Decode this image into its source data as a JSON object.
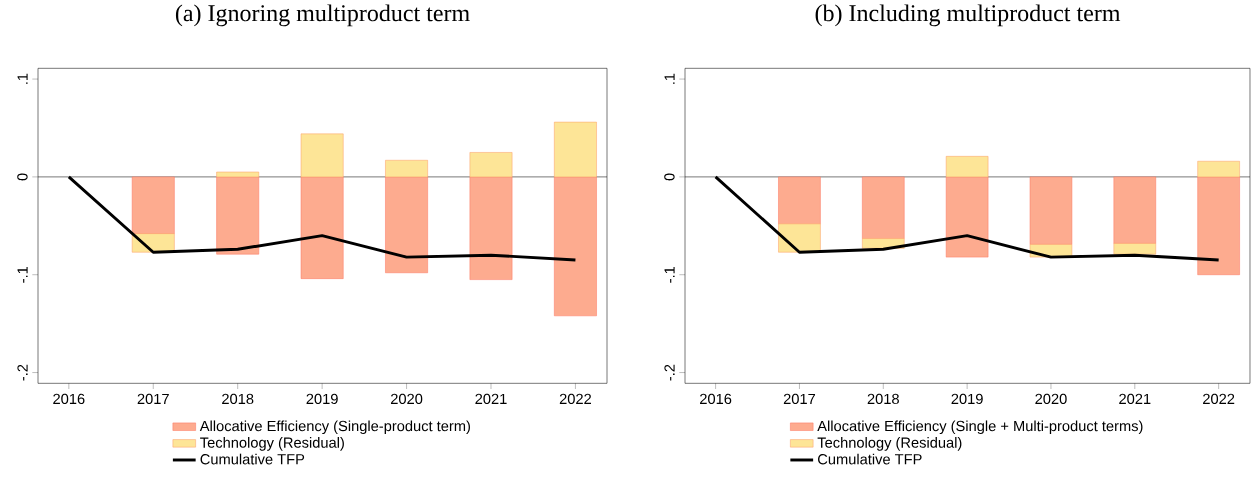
{
  "chart_data": [
    {
      "type": "bar",
      "title": "(a) Ignoring multiproduct term",
      "categories": [
        "2016",
        "2017",
        "2018",
        "2019",
        "2020",
        "2021",
        "2022"
      ],
      "stacked": true,
      "series": [
        {
          "name": "Allocative Efficiency (Single-product term)",
          "color": "#fdab8f",
          "values": [
            null,
            -0.058,
            -0.079,
            -0.104,
            -0.098,
            -0.105,
            -0.142
          ]
        },
        {
          "name": "Technology (Residual)",
          "color": "#fde597",
          "values": [
            null,
            -0.019,
            0.005,
            0.044,
            0.017,
            0.025,
            0.056
          ]
        },
        {
          "name": "Cumulative TFP",
          "type": "line",
          "color": "#000000",
          "values": [
            0,
            -0.077,
            -0.074,
            -0.06,
            -0.082,
            -0.08,
            -0.085
          ]
        }
      ],
      "ylim": [
        -0.211,
        0.111
      ],
      "yticks": [
        {
          "value": -0.2,
          "label": "-.2"
        },
        {
          "value": -0.1,
          "label": "-.1"
        },
        0,
        {
          "value": 0.1,
          "label": ".1"
        }
      ],
      "ref_lines": [
        {
          "axis": "y",
          "value": 0
        }
      ],
      "legend": "bottom"
    },
    {
      "type": "bar",
      "title": "(b) Including multiproduct term",
      "categories": [
        "2016",
        "2017",
        "2018",
        "2019",
        "2020",
        "2021",
        "2022"
      ],
      "stacked": true,
      "series": [
        {
          "name": "Allocative Efficiency (Single + Multi-product terms)",
          "color": "#fdab8f",
          "values": [
            null,
            -0.048,
            -0.063,
            -0.082,
            -0.069,
            -0.068,
            -0.1
          ]
        },
        {
          "name": "Technology (Residual)",
          "color": "#fde597",
          "values": [
            null,
            -0.029,
            -0.01,
            0.021,
            -0.013,
            -0.011,
            0.016
          ]
        },
        {
          "name": "Cumulative TFP",
          "type": "line",
          "color": "#000000",
          "values": [
            0,
            -0.077,
            -0.074,
            -0.06,
            -0.082,
            -0.08,
            -0.085
          ]
        }
      ],
      "ylim": [
        -0.211,
        0.111
      ],
      "yticks": [
        {
          "value": -0.2,
          "label": "-.2"
        },
        {
          "value": -0.1,
          "label": "-.1"
        },
        0,
        {
          "value": 0.1,
          "label": ".1"
        }
      ],
      "ref_lines": [
        {
          "axis": "y",
          "value": 0
        }
      ],
      "legend": "bottom"
    }
  ]
}
